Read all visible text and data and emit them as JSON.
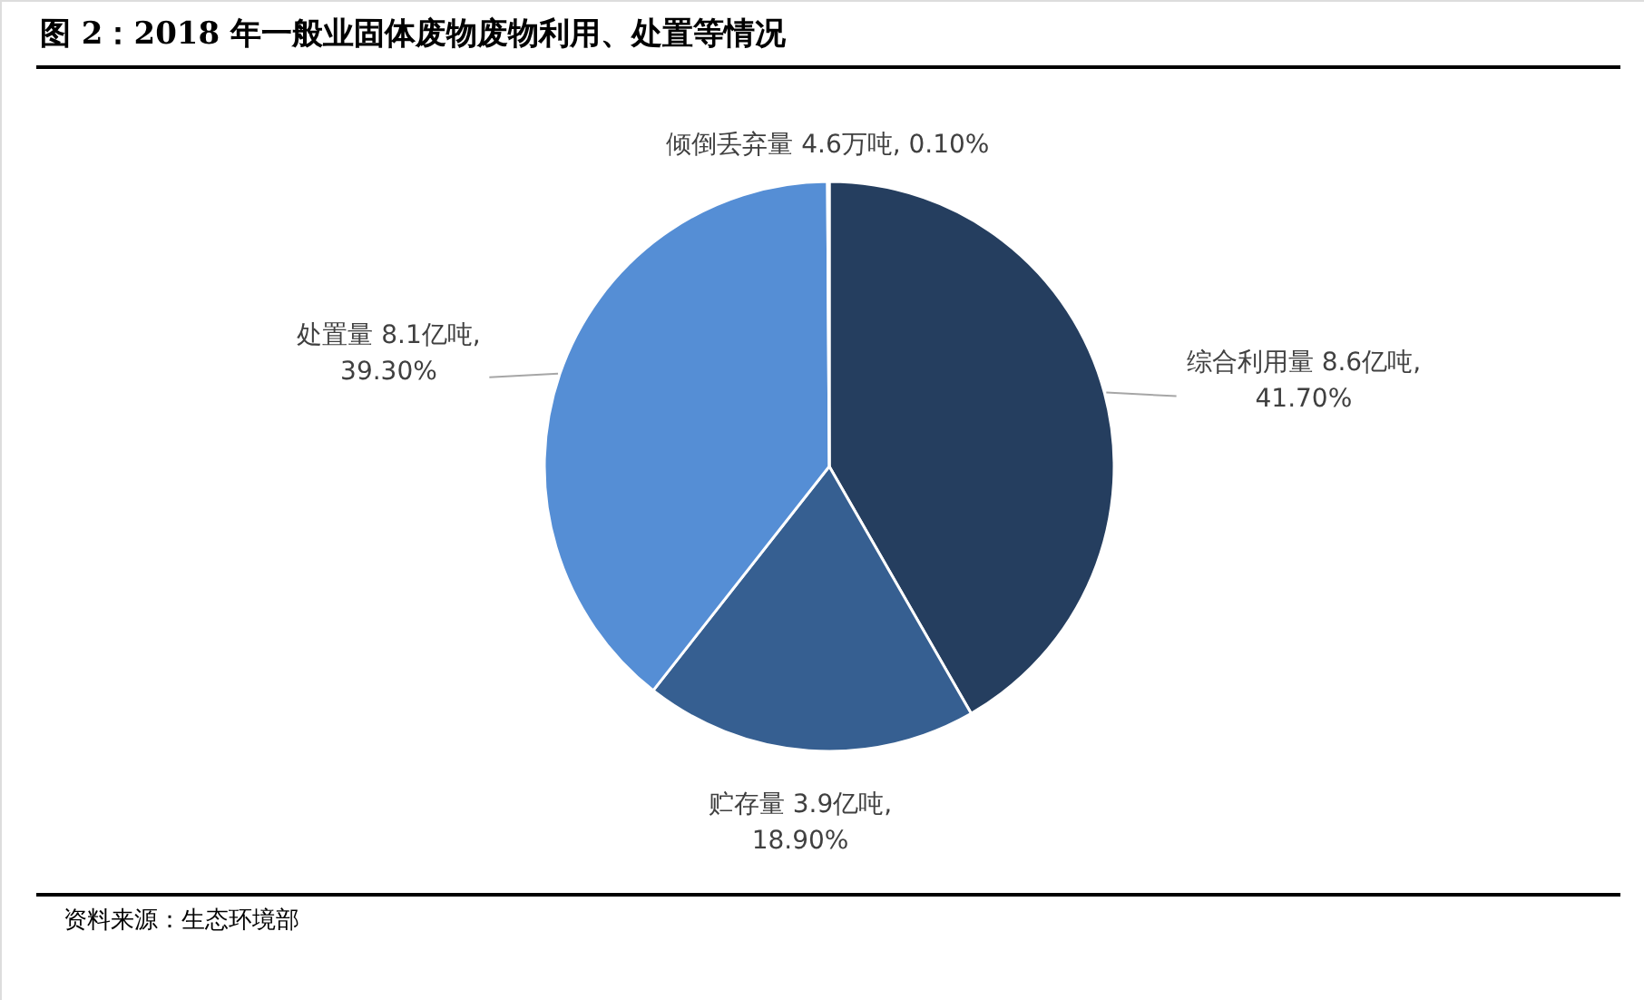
{
  "chart_data": {
    "type": "pie",
    "title": "图 2：2018 年一般业固体废物废物利用、处置等情况",
    "categories": [
      "综合利用量",
      "贮存量",
      "处置量",
      "倾倒丢弃量"
    ],
    "values": [
      41.7,
      18.9,
      39.3,
      0.1
    ],
    "colors": [
      "#253e5f",
      "#365f91",
      "#558ed5",
      "#c6d9f1"
    ],
    "value_labels": [
      "8.6亿吨, 41.70%",
      "3.9亿吨, 18.90%",
      "8.1亿吨, 39.30%",
      "4.6万吨, 0.10%"
    ],
    "annotations": [
      "资料来源：生态环境部"
    ]
  }
}
